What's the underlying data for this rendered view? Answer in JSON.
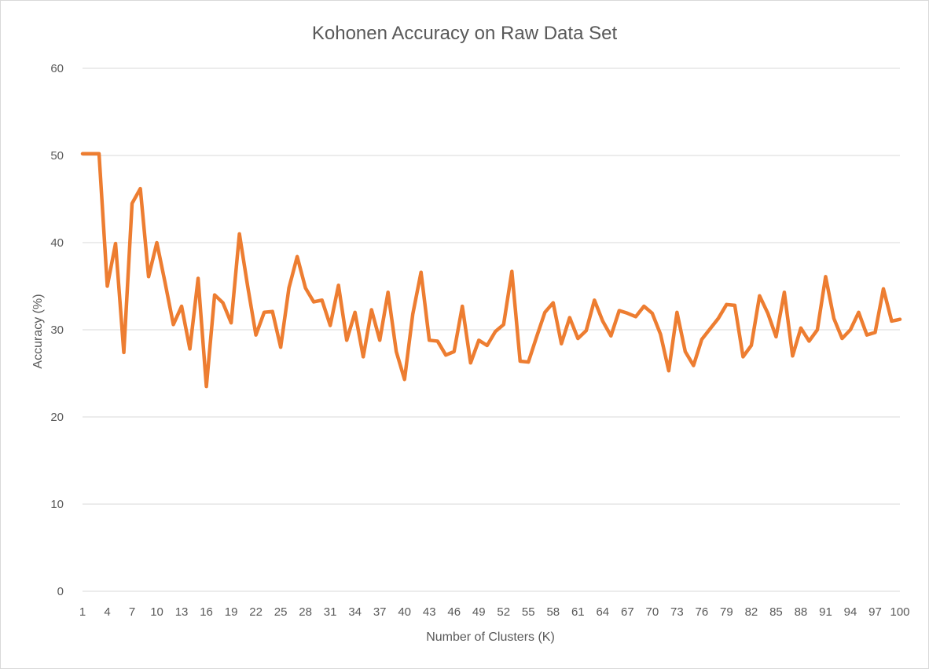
{
  "chart_data": {
    "type": "line",
    "title": "Kohonen Accuracy on Raw Data Set",
    "xlabel": "Number of Clusters (K)",
    "ylabel": "Accuracy (%)",
    "ylim": [
      0,
      60
    ],
    "y_ticks": [
      0,
      10,
      20,
      30,
      40,
      50,
      60
    ],
    "xlim": [
      1,
      100
    ],
    "x_tick_labels": [
      1,
      4,
      7,
      10,
      13,
      16,
      19,
      22,
      25,
      28,
      31,
      34,
      37,
      40,
      43,
      46,
      49,
      52,
      55,
      58,
      61,
      64,
      67,
      70,
      73,
      76,
      79,
      82,
      85,
      88,
      91,
      94,
      97,
      100
    ],
    "grid": true,
    "line_color": "#ED7D31",
    "x": [
      1,
      2,
      3,
      4,
      5,
      6,
      7,
      8,
      9,
      10,
      11,
      12,
      13,
      14,
      15,
      16,
      17,
      18,
      19,
      20,
      21,
      22,
      23,
      24,
      25,
      26,
      27,
      28,
      29,
      30,
      31,
      32,
      33,
      34,
      35,
      36,
      37,
      38,
      39,
      40,
      41,
      42,
      43,
      44,
      45,
      46,
      47,
      48,
      49,
      50,
      51,
      52,
      53,
      54,
      55,
      56,
      57,
      58,
      59,
      60,
      61,
      62,
      63,
      64,
      65,
      66,
      67,
      68,
      69,
      70,
      71,
      72,
      73,
      74,
      75,
      76,
      77,
      78,
      79,
      80,
      81,
      82,
      83,
      84,
      85,
      86,
      87,
      88,
      89,
      90,
      91,
      92,
      93,
      94,
      95,
      96,
      97,
      98,
      99,
      100
    ],
    "values": [
      50.2,
      50.2,
      50.2,
      35.0,
      39.9,
      27.4,
      44.5,
      46.2,
      36.1,
      40.0,
      35.4,
      30.6,
      32.7,
      27.8,
      35.9,
      23.5,
      34.0,
      33.1,
      30.8,
      41.0,
      35.0,
      29.4,
      32.0,
      32.1,
      28.0,
      34.8,
      38.4,
      34.8,
      33.2,
      33.4,
      30.5,
      35.1,
      28.8,
      32.0,
      26.9,
      32.3,
      28.8,
      34.3,
      27.5,
      24.3,
      31.8,
      36.6,
      28.8,
      28.7,
      27.1,
      27.5,
      32.7,
      26.2,
      28.8,
      28.2,
      29.8,
      30.6,
      36.7,
      26.4,
      26.3,
      29.2,
      32.0,
      33.1,
      28.4,
      31.4,
      29.0,
      29.9,
      33.4,
      31.0,
      29.3,
      32.2,
      31.9,
      31.5,
      32.7,
      31.9,
      29.5,
      25.3,
      32.0,
      27.5,
      25.9,
      28.9,
      30.1,
      31.3,
      32.9,
      32.8,
      26.9,
      28.2,
      33.9,
      31.9,
      29.2,
      34.3,
      27.0,
      30.2,
      28.7,
      30.0,
      36.1,
      31.3,
      29.0,
      30.0,
      32.0,
      29.4,
      29.7,
      34.7,
      31.0,
      31.2
    ]
  }
}
